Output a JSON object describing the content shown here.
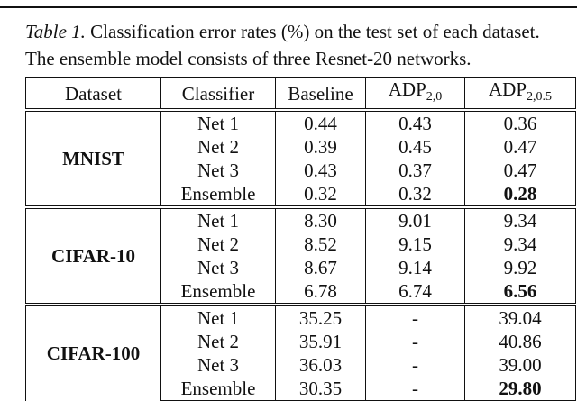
{
  "caption": {
    "label": "Table 1.",
    "text": "Classification error rates (%) on the test set of each dataset.",
    "line2": "The ensemble model consists of three Resnet-20 networks."
  },
  "table": {
    "columns": [
      {
        "main": "Dataset"
      },
      {
        "main": "Classifier"
      },
      {
        "main": "Baseline"
      },
      {
        "main": "ADP",
        "sub": "2,0"
      },
      {
        "main": "ADP",
        "sub": "2,0.5"
      }
    ],
    "groups": [
      {
        "dataset": "MNIST",
        "rows": [
          {
            "cells": [
              "Net 1",
              "0.44",
              "0.43",
              "0.36"
            ]
          },
          {
            "cells": [
              "Net 2",
              "0.39",
              "0.45",
              "0.47"
            ]
          },
          {
            "cells": [
              "Net 3",
              "0.43",
              "0.37",
              "0.47"
            ]
          },
          {
            "cells": [
              "Ensemble",
              "0.32",
              "0.32",
              "0.28"
            ],
            "bold_last": true
          }
        ]
      },
      {
        "dataset": "CIFAR-10",
        "rows": [
          {
            "cells": [
              "Net 1",
              "8.30",
              "9.01",
              "9.34"
            ]
          },
          {
            "cells": [
              "Net 2",
              "8.52",
              "9.15",
              "9.34"
            ]
          },
          {
            "cells": [
              "Net 3",
              "8.67",
              "9.14",
              "9.92"
            ]
          },
          {
            "cells": [
              "Ensemble",
              "6.78",
              "6.74",
              "6.56"
            ],
            "bold_last": true
          }
        ]
      },
      {
        "dataset": "CIFAR-100",
        "rows": [
          {
            "cells": [
              "Net 1",
              "35.25",
              "-",
              "39.04"
            ]
          },
          {
            "cells": [
              "Net 2",
              "35.91",
              "-",
              "40.86"
            ]
          },
          {
            "cells": [
              "Net 3",
              "36.03",
              "-",
              "39.00"
            ]
          },
          {
            "cells": [
              "Ensemble",
              "30.35",
              "-",
              "29.80"
            ],
            "bold_last": true
          }
        ]
      }
    ]
  }
}
